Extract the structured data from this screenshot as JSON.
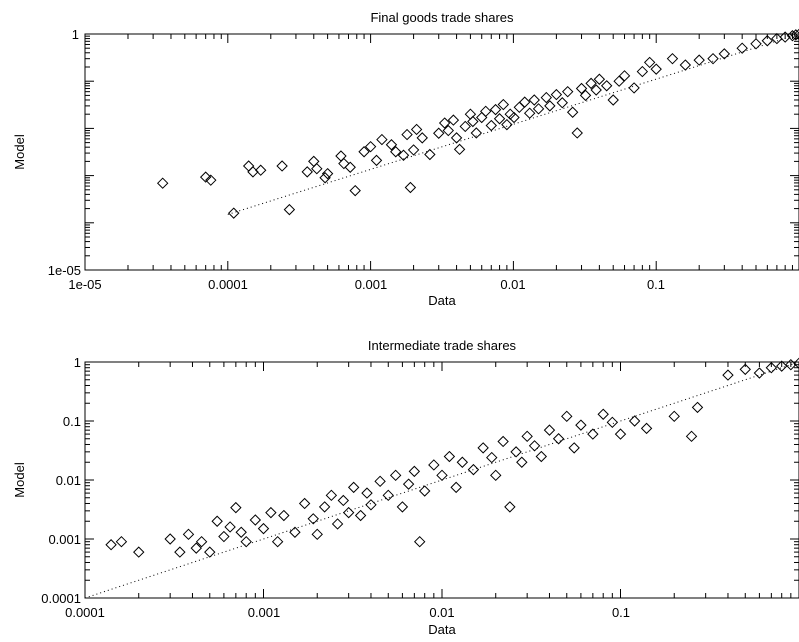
{
  "chart_data": [
    {
      "type": "scatter",
      "title": "Final goods trade shares",
      "xlabel": "Data",
      "ylabel": "Model",
      "xscale": "log",
      "yscale": "log",
      "xlim": [
        1e-05,
        1
      ],
      "ylim": [
        1e-05,
        1
      ],
      "xticks": [
        "1e-05",
        "0.0001",
        "0.001",
        "0.01",
        "0.1"
      ],
      "yticks": [
        "1e-05",
        "1"
      ],
      "fit_line": {
        "style": "dotted",
        "x": [
          0.0001,
          1
        ],
        "y": [
          0.00015,
          1
        ]
      },
      "series": [
        {
          "marker": "diamond",
          "points": [
            [
              3.5e-05,
              0.00069
            ],
            [
              7e-05,
              0.00093
            ],
            [
              7.6e-05,
              0.0008
            ],
            [
              0.00011,
              0.00016
            ],
            [
              0.00014,
              0.0016
            ],
            [
              0.00015,
              0.0012
            ],
            [
              0.00017,
              0.0013
            ],
            [
              0.00024,
              0.0016
            ],
            [
              0.00027,
              0.00019
            ],
            [
              0.00036,
              0.0012
            ],
            [
              0.0004,
              0.002
            ],
            [
              0.00042,
              0.0014
            ],
            [
              0.00048,
              0.0009
            ],
            [
              0.0005,
              0.0011
            ],
            [
              0.00062,
              0.0026
            ],
            [
              0.00065,
              0.0018
            ],
            [
              0.00072,
              0.0015
            ],
            [
              0.00078,
              0.00048
            ],
            [
              0.0009,
              0.0032
            ],
            [
              0.001,
              0.0041
            ],
            [
              0.0011,
              0.0021
            ],
            [
              0.0012,
              0.0058
            ],
            [
              0.0014,
              0.0045
            ],
            [
              0.0015,
              0.0032
            ],
            [
              0.0017,
              0.0027
            ],
            [
              0.0018,
              0.0074
            ],
            [
              0.0019,
              0.00056
            ],
            [
              0.002,
              0.0035
            ],
            [
              0.0021,
              0.0095
            ],
            [
              0.0023,
              0.0063
            ],
            [
              0.0026,
              0.0028
            ],
            [
              0.003,
              0.0079
            ],
            [
              0.0033,
              0.013
            ],
            [
              0.0035,
              0.009
            ],
            [
              0.0038,
              0.015
            ],
            [
              0.004,
              0.0063
            ],
            [
              0.0042,
              0.0036
            ],
            [
              0.0046,
              0.011
            ],
            [
              0.005,
              0.02
            ],
            [
              0.0052,
              0.014
            ],
            [
              0.0055,
              0.008
            ],
            [
              0.006,
              0.017
            ],
            [
              0.0064,
              0.023
            ],
            [
              0.007,
              0.0115
            ],
            [
              0.0075,
              0.025
            ],
            [
              0.008,
              0.016
            ],
            [
              0.0085,
              0.032
            ],
            [
              0.009,
              0.012
            ],
            [
              0.0095,
              0.02
            ],
            [
              0.0101,
              0.017
            ],
            [
              0.011,
              0.028
            ],
            [
              0.012,
              0.036
            ],
            [
              0.013,
              0.021
            ],
            [
              0.014,
              0.04
            ],
            [
              0.015,
              0.026
            ],
            [
              0.017,
              0.045
            ],
            [
              0.018,
              0.03
            ],
            [
              0.02,
              0.052
            ],
            [
              0.022,
              0.035
            ],
            [
              0.024,
              0.06
            ],
            [
              0.026,
              0.022
            ],
            [
              0.028,
              0.008
            ],
            [
              0.03,
              0.07
            ],
            [
              0.032,
              0.05
            ],
            [
              0.035,
              0.09
            ],
            [
              0.038,
              0.065
            ],
            [
              0.04,
              0.11
            ],
            [
              0.045,
              0.08
            ],
            [
              0.05,
              0.04
            ],
            [
              0.055,
              0.1
            ],
            [
              0.06,
              0.13
            ],
            [
              0.07,
              0.072
            ],
            [
              0.08,
              0.16
            ],
            [
              0.09,
              0.25
            ],
            [
              0.1,
              0.18
            ],
            [
              0.13,
              0.3
            ],
            [
              0.16,
              0.22
            ],
            [
              0.2,
              0.28
            ],
            [
              0.25,
              0.3
            ],
            [
              0.3,
              0.38
            ],
            [
              0.4,
              0.5
            ],
            [
              0.5,
              0.62
            ],
            [
              0.6,
              0.72
            ],
            [
              0.7,
              0.8
            ],
            [
              0.8,
              0.86
            ],
            [
              0.9,
              0.92
            ],
            [
              0.95,
              0.96
            ],
            [
              1.0,
              0.98
            ]
          ]
        }
      ]
    },
    {
      "type": "scatter",
      "title": "Intermediate trade shares",
      "xlabel": "Data",
      "ylabel": "Model",
      "xscale": "log",
      "yscale": "log",
      "xlim": [
        0.0001,
        1
      ],
      "ylim": [
        0.0001,
        1
      ],
      "xticks": [
        "0.0001",
        "0.001",
        "0.01",
        "0.1"
      ],
      "yticks": [
        "0.0001",
        "0.001",
        "0.01",
        "0.1",
        "1"
      ],
      "fit_line": {
        "style": "dotted",
        "x": [
          0.0001,
          1
        ],
        "y": [
          0.0001,
          1
        ]
      },
      "series": [
        {
          "marker": "diamond",
          "points": [
            [
              0.00014,
              0.0008
            ],
            [
              0.00016,
              0.0009
            ],
            [
              0.0002,
              0.0006
            ],
            [
              0.0003,
              0.001
            ],
            [
              0.00034,
              0.0006
            ],
            [
              0.00038,
              0.0012
            ],
            [
              0.00042,
              0.0007
            ],
            [
              0.00045,
              0.0009
            ],
            [
              0.0005,
              0.0006
            ],
            [
              0.00055,
              0.002
            ],
            [
              0.0006,
              0.0011
            ],
            [
              0.00065,
              0.0016
            ],
            [
              0.0007,
              0.0034
            ],
            [
              0.00075,
              0.0013
            ],
            [
              0.0008,
              0.0009
            ],
            [
              0.0009,
              0.0021
            ],
            [
              0.001,
              0.0015
            ],
            [
              0.0011,
              0.0028
            ],
            [
              0.0012,
              0.0009
            ],
            [
              0.0013,
              0.0025
            ],
            [
              0.0015,
              0.0013
            ],
            [
              0.0017,
              0.004
            ],
            [
              0.0019,
              0.0022
            ],
            [
              0.002,
              0.0012
            ],
            [
              0.0022,
              0.0035
            ],
            [
              0.0024,
              0.0055
            ],
            [
              0.0026,
              0.0018
            ],
            [
              0.0028,
              0.0045
            ],
            [
              0.003,
              0.0028
            ],
            [
              0.0032,
              0.0075
            ],
            [
              0.0035,
              0.0025
            ],
            [
              0.0038,
              0.006
            ],
            [
              0.004,
              0.0038
            ],
            [
              0.0045,
              0.0095
            ],
            [
              0.005,
              0.0055
            ],
            [
              0.0055,
              0.012
            ],
            [
              0.006,
              0.0035
            ],
            [
              0.0065,
              0.0085
            ],
            [
              0.007,
              0.014
            ],
            [
              0.0075,
              0.0009
            ],
            [
              0.008,
              0.0065
            ],
            [
              0.009,
              0.018
            ],
            [
              0.01,
              0.012
            ],
            [
              0.011,
              0.025
            ],
            [
              0.012,
              0.0075
            ],
            [
              0.013,
              0.02
            ],
            [
              0.015,
              0.015
            ],
            [
              0.017,
              0.035
            ],
            [
              0.019,
              0.024
            ],
            [
              0.02,
              0.012
            ],
            [
              0.022,
              0.045
            ],
            [
              0.024,
              0.0035
            ],
            [
              0.026,
              0.03
            ],
            [
              0.028,
              0.02
            ],
            [
              0.03,
              0.055
            ],
            [
              0.033,
              0.038
            ],
            [
              0.036,
              0.025
            ],
            [
              0.04,
              0.07
            ],
            [
              0.045,
              0.05
            ],
            [
              0.05,
              0.12
            ],
            [
              0.055,
              0.035
            ],
            [
              0.06,
              0.085
            ],
            [
              0.07,
              0.06
            ],
            [
              0.08,
              0.13
            ],
            [
              0.09,
              0.095
            ],
            [
              0.1,
              0.06
            ],
            [
              0.12,
              0.1
            ],
            [
              0.14,
              0.075
            ],
            [
              0.2,
              0.12
            ],
            [
              0.25,
              0.055
            ],
            [
              0.27,
              0.17
            ],
            [
              0.4,
              0.6
            ],
            [
              0.5,
              0.75
            ],
            [
              0.6,
              0.65
            ],
            [
              0.7,
              0.8
            ],
            [
              0.8,
              0.85
            ],
            [
              0.9,
              0.9
            ],
            [
              1.0,
              0.95
            ]
          ]
        }
      ]
    }
  ]
}
